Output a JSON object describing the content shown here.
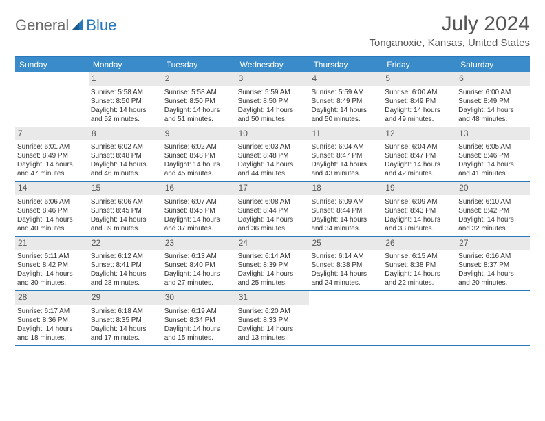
{
  "logo": {
    "general": "General",
    "blue": "Blue"
  },
  "title": "July 2024",
  "location": "Tonganoxie, Kansas, United States",
  "colors": {
    "header_bg": "#3a8bc9",
    "header_border": "#2778bd",
    "daynum_bg": "#e9e9e9",
    "text": "#333333",
    "title_text": "#555555"
  },
  "day_headers": [
    "Sunday",
    "Monday",
    "Tuesday",
    "Wednesday",
    "Thursday",
    "Friday",
    "Saturday"
  ],
  "weeks": [
    [
      null,
      {
        "n": "1",
        "sunrise": "Sunrise: 5:58 AM",
        "sunset": "Sunset: 8:50 PM",
        "day1": "Daylight: 14 hours",
        "day2": "and 52 minutes."
      },
      {
        "n": "2",
        "sunrise": "Sunrise: 5:58 AM",
        "sunset": "Sunset: 8:50 PM",
        "day1": "Daylight: 14 hours",
        "day2": "and 51 minutes."
      },
      {
        "n": "3",
        "sunrise": "Sunrise: 5:59 AM",
        "sunset": "Sunset: 8:50 PM",
        "day1": "Daylight: 14 hours",
        "day2": "and 50 minutes."
      },
      {
        "n": "4",
        "sunrise": "Sunrise: 5:59 AM",
        "sunset": "Sunset: 8:49 PM",
        "day1": "Daylight: 14 hours",
        "day2": "and 50 minutes."
      },
      {
        "n": "5",
        "sunrise": "Sunrise: 6:00 AM",
        "sunset": "Sunset: 8:49 PM",
        "day1": "Daylight: 14 hours",
        "day2": "and 49 minutes."
      },
      {
        "n": "6",
        "sunrise": "Sunrise: 6:00 AM",
        "sunset": "Sunset: 8:49 PM",
        "day1": "Daylight: 14 hours",
        "day2": "and 48 minutes."
      }
    ],
    [
      {
        "n": "7",
        "sunrise": "Sunrise: 6:01 AM",
        "sunset": "Sunset: 8:49 PM",
        "day1": "Daylight: 14 hours",
        "day2": "and 47 minutes."
      },
      {
        "n": "8",
        "sunrise": "Sunrise: 6:02 AM",
        "sunset": "Sunset: 8:48 PM",
        "day1": "Daylight: 14 hours",
        "day2": "and 46 minutes."
      },
      {
        "n": "9",
        "sunrise": "Sunrise: 6:02 AM",
        "sunset": "Sunset: 8:48 PM",
        "day1": "Daylight: 14 hours",
        "day2": "and 45 minutes."
      },
      {
        "n": "10",
        "sunrise": "Sunrise: 6:03 AM",
        "sunset": "Sunset: 8:48 PM",
        "day1": "Daylight: 14 hours",
        "day2": "and 44 minutes."
      },
      {
        "n": "11",
        "sunrise": "Sunrise: 6:04 AM",
        "sunset": "Sunset: 8:47 PM",
        "day1": "Daylight: 14 hours",
        "day2": "and 43 minutes."
      },
      {
        "n": "12",
        "sunrise": "Sunrise: 6:04 AM",
        "sunset": "Sunset: 8:47 PM",
        "day1": "Daylight: 14 hours",
        "day2": "and 42 minutes."
      },
      {
        "n": "13",
        "sunrise": "Sunrise: 6:05 AM",
        "sunset": "Sunset: 8:46 PM",
        "day1": "Daylight: 14 hours",
        "day2": "and 41 minutes."
      }
    ],
    [
      {
        "n": "14",
        "sunrise": "Sunrise: 6:06 AM",
        "sunset": "Sunset: 8:46 PM",
        "day1": "Daylight: 14 hours",
        "day2": "and 40 minutes."
      },
      {
        "n": "15",
        "sunrise": "Sunrise: 6:06 AM",
        "sunset": "Sunset: 8:45 PM",
        "day1": "Daylight: 14 hours",
        "day2": "and 39 minutes."
      },
      {
        "n": "16",
        "sunrise": "Sunrise: 6:07 AM",
        "sunset": "Sunset: 8:45 PM",
        "day1": "Daylight: 14 hours",
        "day2": "and 37 minutes."
      },
      {
        "n": "17",
        "sunrise": "Sunrise: 6:08 AM",
        "sunset": "Sunset: 8:44 PM",
        "day1": "Daylight: 14 hours",
        "day2": "and 36 minutes."
      },
      {
        "n": "18",
        "sunrise": "Sunrise: 6:09 AM",
        "sunset": "Sunset: 8:44 PM",
        "day1": "Daylight: 14 hours",
        "day2": "and 34 minutes."
      },
      {
        "n": "19",
        "sunrise": "Sunrise: 6:09 AM",
        "sunset": "Sunset: 8:43 PM",
        "day1": "Daylight: 14 hours",
        "day2": "and 33 minutes."
      },
      {
        "n": "20",
        "sunrise": "Sunrise: 6:10 AM",
        "sunset": "Sunset: 8:42 PM",
        "day1": "Daylight: 14 hours",
        "day2": "and 32 minutes."
      }
    ],
    [
      {
        "n": "21",
        "sunrise": "Sunrise: 6:11 AM",
        "sunset": "Sunset: 8:42 PM",
        "day1": "Daylight: 14 hours",
        "day2": "and 30 minutes."
      },
      {
        "n": "22",
        "sunrise": "Sunrise: 6:12 AM",
        "sunset": "Sunset: 8:41 PM",
        "day1": "Daylight: 14 hours",
        "day2": "and 28 minutes."
      },
      {
        "n": "23",
        "sunrise": "Sunrise: 6:13 AM",
        "sunset": "Sunset: 8:40 PM",
        "day1": "Daylight: 14 hours",
        "day2": "and 27 minutes."
      },
      {
        "n": "24",
        "sunrise": "Sunrise: 6:14 AM",
        "sunset": "Sunset: 8:39 PM",
        "day1": "Daylight: 14 hours",
        "day2": "and 25 minutes."
      },
      {
        "n": "25",
        "sunrise": "Sunrise: 6:14 AM",
        "sunset": "Sunset: 8:38 PM",
        "day1": "Daylight: 14 hours",
        "day2": "and 24 minutes."
      },
      {
        "n": "26",
        "sunrise": "Sunrise: 6:15 AM",
        "sunset": "Sunset: 8:38 PM",
        "day1": "Daylight: 14 hours",
        "day2": "and 22 minutes."
      },
      {
        "n": "27",
        "sunrise": "Sunrise: 6:16 AM",
        "sunset": "Sunset: 8:37 PM",
        "day1": "Daylight: 14 hours",
        "day2": "and 20 minutes."
      }
    ],
    [
      {
        "n": "28",
        "sunrise": "Sunrise: 6:17 AM",
        "sunset": "Sunset: 8:36 PM",
        "day1": "Daylight: 14 hours",
        "day2": "and 18 minutes."
      },
      {
        "n": "29",
        "sunrise": "Sunrise: 6:18 AM",
        "sunset": "Sunset: 8:35 PM",
        "day1": "Daylight: 14 hours",
        "day2": "and 17 minutes."
      },
      {
        "n": "30",
        "sunrise": "Sunrise: 6:19 AM",
        "sunset": "Sunset: 8:34 PM",
        "day1": "Daylight: 14 hours",
        "day2": "and 15 minutes."
      },
      {
        "n": "31",
        "sunrise": "Sunrise: 6:20 AM",
        "sunset": "Sunset: 8:33 PM",
        "day1": "Daylight: 14 hours",
        "day2": "and 13 minutes."
      },
      null,
      null,
      null
    ]
  ]
}
